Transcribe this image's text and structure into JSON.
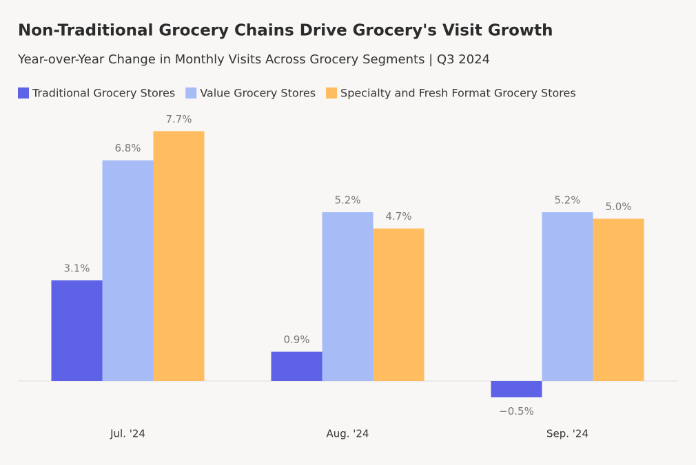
{
  "chart_data": {
    "type": "bar",
    "title": "Non-Traditional Grocery Chains Drive Grocery's Visit Growth",
    "subtitle": "Year-over-Year Change in Monthly Visits Across Grocery Segments | Q3 2024",
    "categories": [
      "Jul. '24",
      "Aug. '24",
      "Sep. '24"
    ],
    "series": [
      {
        "name": "Traditional Grocery Stores",
        "color": "#5d62e6",
        "values": [
          3.1,
          0.9,
          -0.5
        ],
        "value_labels": [
          "3.1%",
          "0.9%",
          "−0.5%"
        ]
      },
      {
        "name": "Value Grocery Stores",
        "color": "#a7bcf7",
        "values": [
          6.8,
          5.2,
          5.2
        ],
        "value_labels": [
          "6.8%",
          "5.2%",
          "5.2%"
        ]
      },
      {
        "name": "Specialty and Fresh Format Grocery Stores",
        "color": "#ffbd5f",
        "values": [
          7.7,
          4.7,
          5.0
        ],
        "value_labels": [
          "7.7%",
          "4.7%",
          "5.0%"
        ]
      }
    ],
    "legend": "top-left"
  }
}
